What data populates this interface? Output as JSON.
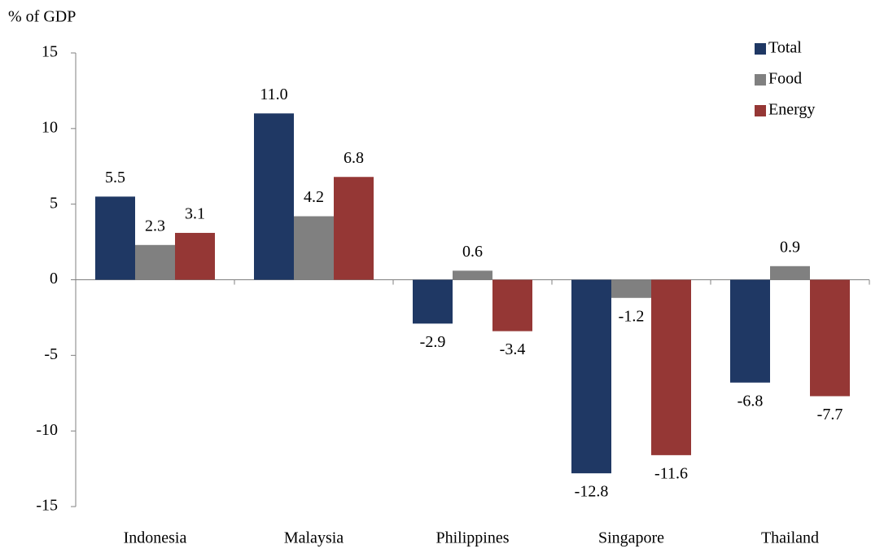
{
  "chart_data": {
    "type": "bar",
    "y_axis_label": "% of GDP",
    "categories": [
      "Indonesia",
      "Malaysia",
      "Philippines",
      "Singapore",
      "Thailand"
    ],
    "series": [
      {
        "name": "Total",
        "color": "#1f3864",
        "values": [
          5.5,
          11.0,
          -2.9,
          -12.8,
          -6.8
        ],
        "value_labels": [
          "5.5",
          "11.0",
          "-2.9",
          "-12.8",
          "-6.8"
        ]
      },
      {
        "name": "Food",
        "color": "#808080",
        "values": [
          2.3,
          4.2,
          0.6,
          -1.2,
          0.9
        ],
        "value_labels": [
          "2.3",
          "4.2",
          "0.6",
          "-1.2",
          "0.9"
        ]
      },
      {
        "name": "Energy",
        "color": "#953735",
        "values": [
          3.1,
          6.8,
          -3.4,
          -11.6,
          -7.7
        ],
        "value_labels": [
          "3.1",
          "6.8",
          "-3.4",
          "-11.6",
          "-7.7"
        ]
      }
    ],
    "ylim": [
      -15,
      15
    ],
    "yticks": [
      -15,
      -10,
      -5,
      0,
      5,
      10,
      15
    ],
    "grid": false,
    "legend": "top-right"
  }
}
